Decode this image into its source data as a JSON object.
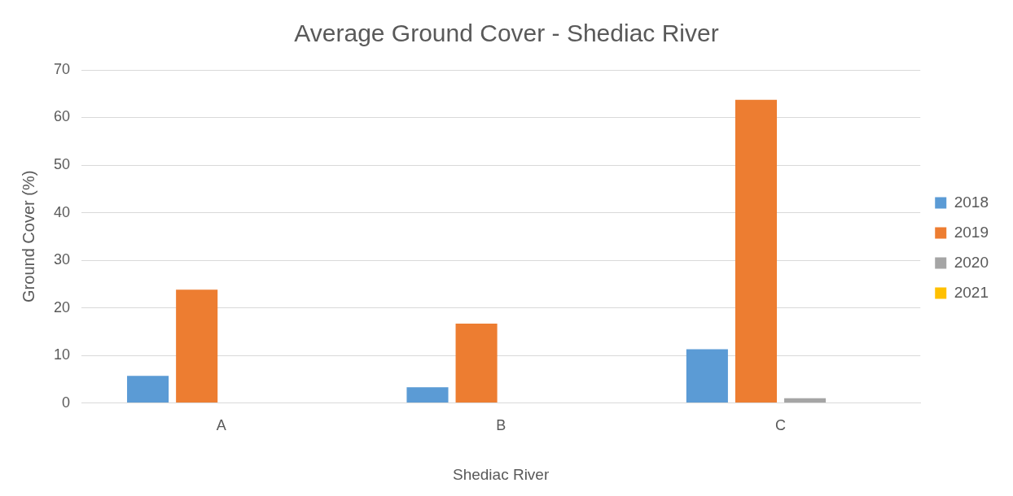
{
  "chart_data": {
    "type": "bar",
    "title": "Average Ground Cover - Shediac River",
    "xlabel": "Shediac River",
    "ylabel": "Ground Cover (%)",
    "categories": [
      "A",
      "B",
      "C"
    ],
    "series": [
      {
        "name": "2018",
        "color": "#5b9bd5",
        "values": [
          5.7,
          3.3,
          11.3
        ]
      },
      {
        "name": "2019",
        "color": "#ed7d31",
        "values": [
          23.8,
          16.7,
          63.7
        ]
      },
      {
        "name": "2020",
        "color": "#a5a5a5",
        "values": [
          0,
          0,
          1.0
        ]
      },
      {
        "name": "2021",
        "color": "#ffc000",
        "values": [
          0,
          0,
          0
        ]
      }
    ],
    "ylim": [
      0,
      70
    ],
    "yticks": [
      0,
      10,
      20,
      30,
      40,
      50,
      60,
      70
    ],
    "grid": "y",
    "legend": "right"
  }
}
